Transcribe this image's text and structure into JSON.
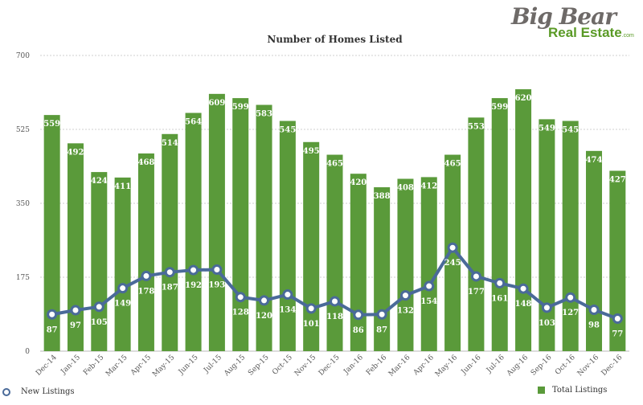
{
  "logo": {
    "line1": "Big Bear",
    "line2": "Real Estate",
    "suffix": ".com"
  },
  "chart_data": {
    "type": "bar",
    "title": "Number of Homes Listed",
    "xlabel": "",
    "ylabel": "",
    "ylim": [
      0,
      700
    ],
    "yticks": [
      0,
      175,
      350,
      525,
      700
    ],
    "grid": true,
    "legend_position": "bottom",
    "categories": [
      "Dec-14",
      "Jan-15",
      "Feb-15",
      "Mar-15",
      "Apr-15",
      "May-15",
      "Jun-15",
      "Jul-15",
      "Aug-15",
      "Sep-15",
      "Oct-15",
      "Nov-15",
      "Dec-15",
      "Jan-16",
      "Feb-16",
      "Mar-16",
      "Apr-16",
      "May-16",
      "Jun-16",
      "Jul-16",
      "Aug-16",
      "Sep-16",
      "Oct-16",
      "Nov-16",
      "Dec-16"
    ],
    "series": [
      {
        "name": "Total Listings",
        "type": "bar",
        "color": "#5a9a3a",
        "values": [
          559,
          492,
          424,
          411,
          468,
          514,
          564,
          609,
          599,
          583,
          545,
          495,
          465,
          420,
          388,
          408,
          412,
          465,
          553,
          599,
          620,
          549,
          545,
          474,
          427
        ]
      },
      {
        "name": "New Listings",
        "type": "line",
        "color": "#4a6a99",
        "values": [
          87,
          97,
          105,
          149,
          178,
          187,
          192,
          193,
          128,
          120,
          134,
          101,
          118,
          86,
          87,
          132,
          154,
          245,
          177,
          161,
          148,
          103,
          127,
          98,
          77
        ]
      }
    ]
  }
}
